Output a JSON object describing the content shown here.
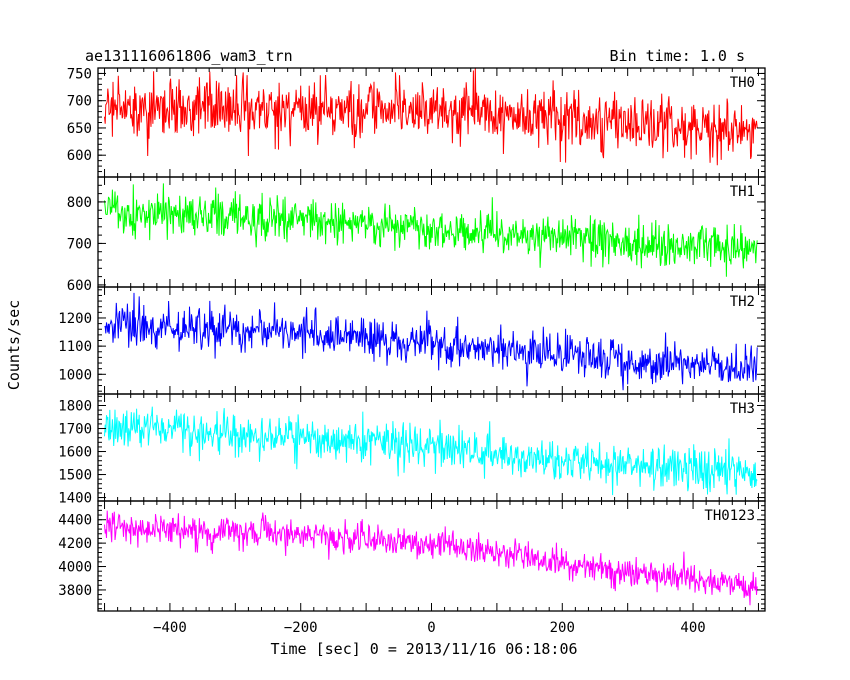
{
  "chart_data": {
    "type": "line",
    "title": "ae131116061806_wam3_trn",
    "bin_time_label": "Bin time: 1.0 s",
    "xlabel": "Time [sec] 0 = 2013/11/16 06:18:06",
    "ylabel": "Counts/sec",
    "xlim": [
      -510,
      510
    ],
    "x_ticks": [
      -400,
      -200,
      0,
      200,
      400
    ],
    "x_tick_labels": [
      "−400",
      "−200",
      "0",
      "200",
      "400"
    ],
    "x_range": [
      -500,
      498
    ],
    "series": [
      {
        "name": "TH0",
        "color": "#ff0000",
        "ylim": [
          560,
          760
        ],
        "y_ticks": [
          600,
          650,
          700,
          750
        ],
        "y_tick_labels": [
          "600",
          "650",
          "700",
          "750"
        ],
        "trend": [
          [
            -500,
            688
          ],
          [
            -100,
            685
          ],
          [
            100,
            675
          ],
          [
            498,
            640
          ]
        ],
        "noise_sd": 28
      },
      {
        "name": "TH1",
        "color": "#00ff00",
        "ylim": [
          595,
          860
        ],
        "y_ticks": [
          600,
          700,
          800
        ],
        "y_tick_labels": [
          "600",
          "700",
          "800"
        ],
        "trend": [
          [
            -500,
            775
          ],
          [
            -200,
            760
          ],
          [
            100,
            725
          ],
          [
            300,
            700
          ],
          [
            498,
            690
          ]
        ],
        "noise_sd": 26
      },
      {
        "name": "TH2",
        "color": "#0000ff",
        "ylim": [
          930,
          1310
        ],
        "y_ticks": [
          1000,
          1100,
          1200
        ],
        "y_tick_labels": [
          "1000",
          "1100",
          "1200"
        ],
        "trend": [
          [
            -500,
            1175
          ],
          [
            -200,
            1150
          ],
          [
            0,
            1110
          ],
          [
            200,
            1060
          ],
          [
            498,
            1020
          ]
        ],
        "noise_sd": 38
      },
      {
        "name": "TH3",
        "color": "#00ffff",
        "ylim": [
          1385,
          1850
        ],
        "y_ticks": [
          1400,
          1500,
          1600,
          1700,
          1800
        ],
        "y_tick_labels": [
          "1400",
          "1500",
          "1600",
          "1700",
          "1800"
        ],
        "trend": [
          [
            -500,
            1700
          ],
          [
            -200,
            1665
          ],
          [
            0,
            1625
          ],
          [
            200,
            1560
          ],
          [
            498,
            1510
          ]
        ],
        "noise_sd": 45
      },
      {
        "name": "TH0123",
        "color": "#ff00ff",
        "ylim": [
          3620,
          4560
        ],
        "y_ticks": [
          3800,
          4000,
          4200,
          4400
        ],
        "y_tick_labels": [
          "3800",
          "4000",
          "4200",
          "4400"
        ],
        "trend": [
          [
            -500,
            4340
          ],
          [
            -200,
            4275
          ],
          [
            0,
            4200
          ],
          [
            100,
            4130
          ],
          [
            250,
            3990
          ],
          [
            498,
            3820
          ]
        ],
        "noise_sd": 65
      }
    ]
  }
}
